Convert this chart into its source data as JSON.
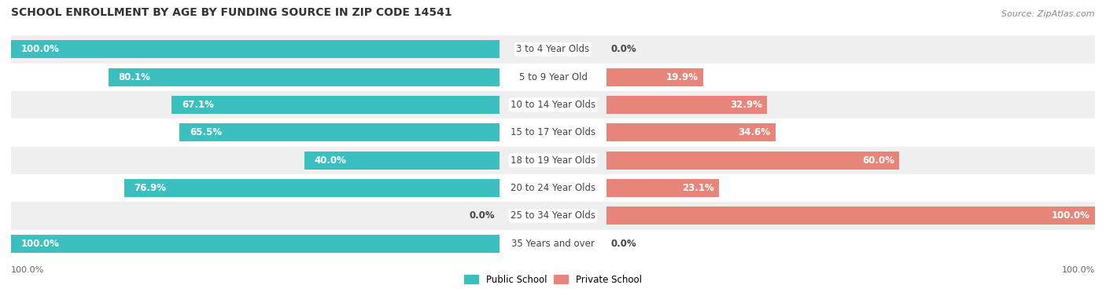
{
  "title": "SCHOOL ENROLLMENT BY AGE BY FUNDING SOURCE IN ZIP CODE 14541",
  "source": "Source: ZipAtlas.com",
  "categories": [
    "3 to 4 Year Olds",
    "5 to 9 Year Old",
    "10 to 14 Year Olds",
    "15 to 17 Year Olds",
    "18 to 19 Year Olds",
    "20 to 24 Year Olds",
    "25 to 34 Year Olds",
    "35 Years and over"
  ],
  "public_pct": [
    100.0,
    80.1,
    67.1,
    65.5,
    40.0,
    76.9,
    0.0,
    100.0
  ],
  "private_pct": [
    0.0,
    19.9,
    32.9,
    34.6,
    60.0,
    23.1,
    100.0,
    0.0
  ],
  "public_color": "#3BBFBF",
  "private_color": "#E8857A",
  "public_color_light": "#A8D8D8",
  "private_color_light": "#F0B8B0",
  "bg_row_light": "#EFEFEF",
  "bg_row_white": "#FFFFFF",
  "axis_label_left": "100.0%",
  "axis_label_right": "100.0%",
  "legend_public": "Public School",
  "legend_private": "Private School",
  "title_fontsize": 10,
  "source_fontsize": 8,
  "bar_label_fontsize": 8.5,
  "cat_label_fontsize": 8.5
}
